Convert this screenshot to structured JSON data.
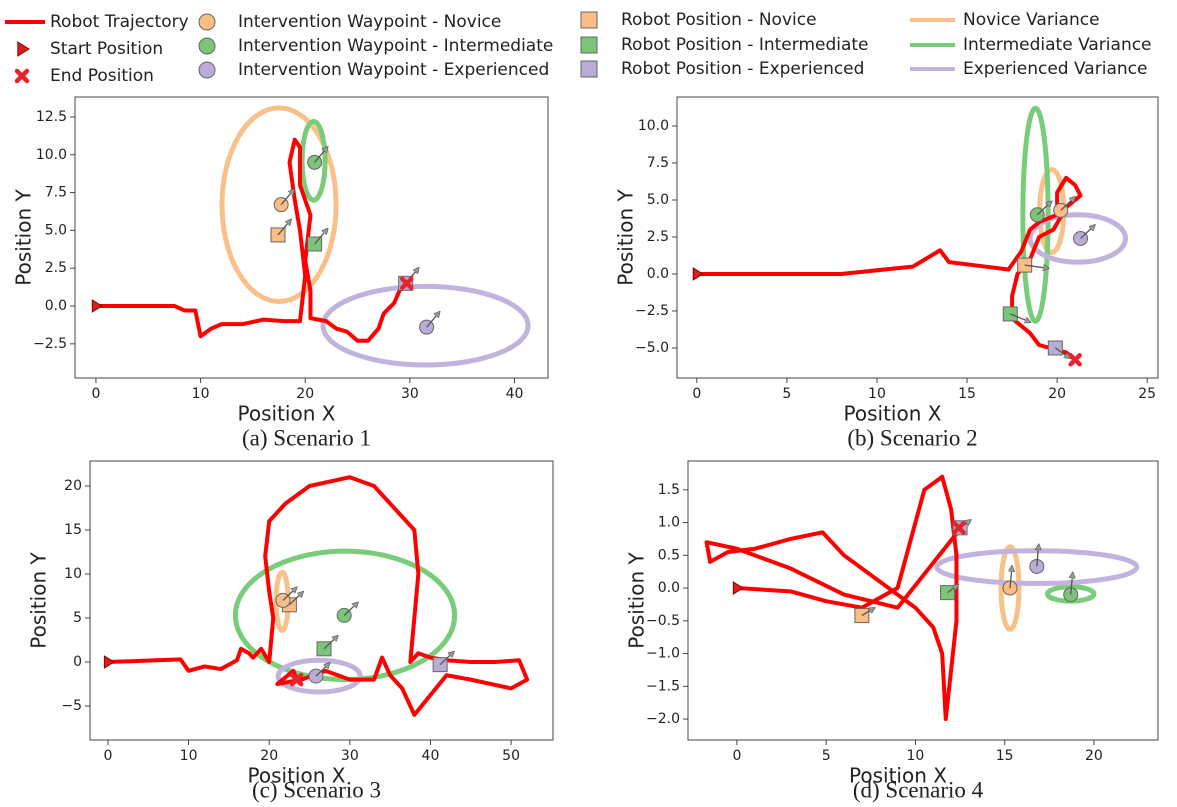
{
  "legend": [
    {
      "name": "Robot Trajectory",
      "color": "#ff0000"
    },
    {
      "name": "Start Position",
      "color": "#d91e1e"
    },
    {
      "name": "End Position",
      "color": "#e8232b"
    },
    {
      "name": "Intervention Waypoint - Novice",
      "color": "#f9bd85"
    },
    {
      "name": "Intervention Waypoint - Intermediate",
      "color": "#7cc47a"
    },
    {
      "name": "Intervention Waypoint - Experienced",
      "color": "#b9acd6"
    },
    {
      "name": "Robot Position - Novice",
      "color": "#f9bd85"
    },
    {
      "name": "Robot Position - Intermediate",
      "color": "#7cc47a"
    },
    {
      "name": "Robot Position - Experienced",
      "color": "#b9acd6"
    },
    {
      "name": "Novice Variance",
      "color": "#f9c08a"
    },
    {
      "name": "Intermediate Variance",
      "color": "#79cc79"
    },
    {
      "name": "Experienced Variance",
      "color": "#c0b3dd"
    }
  ],
  "chart_data": [
    {
      "type": "trajectory",
      "caption": "(a) Scenario 1",
      "xlabel": "Position X",
      "ylabel": "Position Y",
      "xlim": [
        -2.0,
        43.2
      ],
      "ylim": [
        -4.76,
        13.82
      ],
      "xticks": [
        0,
        10,
        20,
        30,
        40
      ],
      "yticks": [
        {
          "value": 12.5,
          "label": "12.5"
        },
        {
          "value": 10,
          "label": "10.0"
        },
        {
          "value": 7.5,
          "label": "7.5"
        },
        {
          "value": 5,
          "label": "5.0"
        },
        {
          "value": 2.5,
          "label": "2.5"
        },
        {
          "value": 0,
          "label": "0.0"
        },
        {
          "value": -2.5,
          "label": "−2.5"
        }
      ],
      "trajectory": {
        "x": [
          0,
          7.5,
          8.5,
          9.5,
          10,
          11,
          12,
          14,
          16,
          18,
          19.5,
          20,
          19.5,
          19,
          18.5,
          19,
          19.5,
          19.5,
          20.5,
          20,
          20.5,
          20.5,
          22,
          23,
          24,
          25,
          26,
          27,
          27.5,
          28.5,
          29,
          29.7
        ],
        "y": [
          0,
          0,
          -0.3,
          -0.3,
          -2,
          -1.5,
          -1.2,
          -1.2,
          -0.9,
          -1,
          -1,
          2,
          5,
          7,
          9.5,
          11,
          10.5,
          8,
          6,
          3,
          1,
          -0.8,
          -1,
          -1.5,
          -1.7,
          -2.3,
          -2.3,
          -1.5,
          -0.5,
          0.2,
          1,
          1.5
        ]
      },
      "start": {
        "x": 0,
        "y": 0
      },
      "end": {
        "x": 29.7,
        "y": 1.5
      },
      "waypoints": [
        {
          "x": 17.7,
          "y": 6.7,
          "arrow": [
            1.1,
            0.9
          ]
        },
        {
          "x": 20.9,
          "y": 9.5,
          "arrow": [
            1.1,
            0.9
          ]
        },
        {
          "x": 31.6,
          "y": -1.4,
          "arrow": [
            1.1,
            0.9
          ]
        }
      ],
      "robot_positions": [
        {
          "x": 17.4,
          "y": 4.7,
          "arrow": [
            1.1,
            0.9
          ]
        },
        {
          "x": 20.9,
          "y": 4.1,
          "arrow": [
            1.1,
            0.9
          ]
        },
        {
          "x": 29.6,
          "y": 1.5,
          "arrow": [
            1.1,
            0.9
          ]
        }
      ],
      "variance": [
        {
          "cx": 17.5,
          "cy": 6.7,
          "rx": 5.45,
          "ry": 6.4
        },
        {
          "cx": 20.8,
          "cy": 9.6,
          "rx": 1.1,
          "ry": 2.6
        },
        {
          "cx": 31.5,
          "cy": -1.3,
          "rx": 9.8,
          "ry": 2.6
        }
      ]
    },
    {
      "type": "trajectory",
      "caption": "(b) Scenario 2",
      "xlabel": "Position X",
      "ylabel": "Position Y",
      "xlim": [
        -1.1,
        25.6
      ],
      "ylim": [
        -7.03,
        11.96
      ],
      "xticks": [
        0,
        5,
        10,
        15,
        20,
        25
      ],
      "yticks": [
        {
          "value": 10,
          "label": "10.0"
        },
        {
          "value": 7.5,
          "label": "7.5"
        },
        {
          "value": 5,
          "label": "5.0"
        },
        {
          "value": 2.5,
          "label": "2.5"
        },
        {
          "value": 0,
          "label": "0.0"
        },
        {
          "value": -2.5,
          "label": "−2.5"
        },
        {
          "value": -5,
          "label": "−5.0"
        }
      ],
      "trajectory": {
        "x": [
          0,
          8,
          12,
          13.5,
          14,
          16,
          17.3,
          18,
          18.5,
          19,
          20,
          20,
          20.5,
          21,
          21.3,
          20.5,
          19.8,
          19,
          18.5,
          17.8,
          17.5,
          17.5,
          18.5,
          19,
          20.5,
          21
        ],
        "y": [
          0,
          0,
          0.5,
          1.6,
          0.8,
          0.5,
          0.3,
          1.5,
          3,
          3.5,
          4,
          5.5,
          6.5,
          6,
          5.3,
          4.5,
          3,
          2.5,
          1,
          0,
          -1.5,
          -3,
          -4,
          -4.8,
          -5.3,
          -5.8
        ]
      },
      "start": {
        "x": 0,
        "y": 0
      },
      "end": {
        "x": 21,
        "y": -5.8
      },
      "waypoints": [
        {
          "x": 20.2,
          "y": 4.3,
          "arrow": [
            0.7,
            0.8
          ]
        },
        {
          "x": 18.9,
          "y": 4.0,
          "arrow": [
            0.7,
            0.8
          ]
        },
        {
          "x": 21.3,
          "y": 2.4,
          "arrow": [
            0.7,
            0.8
          ]
        }
      ],
      "robot_positions": [
        {
          "x": 18.2,
          "y": 0.6,
          "arrow": [
            1.2,
            -0.2
          ]
        },
        {
          "x": 17.4,
          "y": -2.7,
          "arrow": [
            1.0,
            -0.5
          ]
        },
        {
          "x": 19.9,
          "y": -5.0,
          "arrow": [
            0.7,
            -0.6
          ]
        }
      ],
      "variance": [
        {
          "cx": 19.7,
          "cy": 4.25,
          "rx": 0.67,
          "ry": 2.8
        },
        {
          "cx": 18.8,
          "cy": 4.0,
          "rx": 0.7,
          "ry": 7.2
        },
        {
          "cx": 21.15,
          "cy": 2.4,
          "rx": 2.65,
          "ry": 1.6
        }
      ]
    },
    {
      "type": "trajectory",
      "caption": "(c) Scenario 3",
      "xlabel": "Position X",
      "ylabel": "Position Y",
      "xlim": [
        -2.23,
        55.2
      ],
      "ylim": [
        -8.86,
        22.84
      ],
      "xticks": [
        0,
        10,
        20,
        30,
        40,
        50
      ],
      "yticks": [
        20,
        15,
        10,
        5,
        0,
        {
          "value": -5,
          "label": "−5"
        }
      ],
      "trajectory": {
        "x": [
          0,
          9,
          10,
          12,
          14,
          16,
          16.5,
          17.5,
          18,
          19,
          20,
          20.5,
          20,
          19.5,
          20,
          22,
          25,
          30,
          33,
          36,
          38,
          38.5,
          38,
          37.5,
          38.5,
          40,
          42,
          45,
          48,
          51,
          52,
          50,
          45,
          42,
          38,
          36.5,
          35,
          34,
          33,
          30,
          27,
          24,
          21,
          23,
          23.4
        ],
        "y": [
          0,
          0.3,
          -1,
          -0.5,
          -0.8,
          0.2,
          1.5,
          1,
          0.5,
          1.5,
          0,
          5,
          8,
          12,
          16,
          18,
          20,
          21,
          20,
          17,
          15,
          10,
          5,
          0,
          1,
          0.5,
          0.2,
          0,
          0,
          0.2,
          -2,
          -3,
          -2,
          -1.5,
          -6,
          -3,
          -1.5,
          0.5,
          -2,
          -2,
          -1,
          -2,
          -2.5,
          -1,
          -2.0
        ]
      },
      "start": {
        "x": 0,
        "y": 0
      },
      "end": {
        "x": 23.4,
        "y": -2.0
      },
      "waypoints": [
        {
          "x": 21.7,
          "y": 7.0,
          "arrow": [
            1.5,
            1.3
          ]
        },
        {
          "x": 29.3,
          "y": 5.3,
          "arrow": [
            1.5,
            1.3
          ]
        },
        {
          "x": 25.8,
          "y": -1.6,
          "arrow": [
            1.5,
            1.3
          ]
        }
      ],
      "robot_positions": [
        {
          "x": 22.5,
          "y": 6.5,
          "arrow": [
            1.5,
            1.3
          ]
        },
        {
          "x": 26.8,
          "y": 1.5,
          "arrow": [
            1.5,
            1.3
          ]
        },
        {
          "x": 41.2,
          "y": -0.3,
          "arrow": [
            1.5,
            1.3
          ]
        }
      ],
      "variance": [
        {
          "cx": 21.6,
          "cy": 6.9,
          "rx": 0.75,
          "ry": 3.3
        },
        {
          "cx": 29.4,
          "cy": 5.3,
          "rx": 13.6,
          "ry": 7.3
        },
        {
          "cx": 26.2,
          "cy": -1.6,
          "rx": 5.1,
          "ry": 1.8
        }
      ]
    },
    {
      "type": "trajectory",
      "caption": "(d) Scenario 4",
      "xlabel": "Position X",
      "ylabel": "Position Y",
      "xlim": [
        -2.74,
        23.59
      ],
      "ylim": [
        -2.32,
        1.94
      ],
      "xticks": [
        0,
        5,
        10,
        15,
        20
      ],
      "yticks": [
        {
          "value": 1.5,
          "label": "1.5"
        },
        {
          "value": 1,
          "label": "1.0"
        },
        {
          "value": 0.5,
          "label": "0.5"
        },
        {
          "value": 0,
          "label": "0.0"
        },
        {
          "value": -0.5,
          "label": "−0.5"
        },
        {
          "value": -1,
          "label": "−1.0"
        },
        {
          "value": -1.5,
          "label": "−1.5"
        },
        {
          "value": -2,
          "label": "−2.0"
        }
      ],
      "trajectory": {
        "x": [
          0,
          3,
          5,
          7,
          9,
          10,
          10.5,
          11.5,
          12,
          12.3,
          12.3,
          11.7,
          11.5,
          11,
          10,
          8,
          6,
          4.8,
          3,
          1,
          -0.5,
          -1.5,
          -1.7,
          0,
          3,
          6,
          9,
          12.5
        ],
        "y": [
          0,
          -0.05,
          -0.2,
          -0.3,
          0,
          1,
          1.5,
          1.7,
          1.2,
          0.5,
          -0.5,
          -2,
          -1,
          -0.6,
          -0.3,
          0.1,
          0.5,
          0.85,
          0.75,
          0.6,
          0.55,
          0.4,
          0.7,
          0.6,
          0.3,
          -0.1,
          -0.3,
          0.9
        ]
      },
      "start": {
        "x": 0,
        "y": 0
      },
      "end": {
        "x": 12.44,
        "y": 0.92
      },
      "waypoints": [
        {
          "x": 15.3,
          "y": 0,
          "arrow": [
            0.1,
            0.3
          ]
        },
        {
          "x": 18.7,
          "y": -0.1,
          "arrow": [
            0.1,
            0.3
          ]
        },
        {
          "x": 16.8,
          "y": 0.33,
          "arrow": [
            0.1,
            0.3
          ]
        }
      ],
      "robot_positions": [
        {
          "x": 7.0,
          "y": -0.42,
          "arrow": [
            0.6,
            0.1
          ]
        },
        {
          "x": 11.8,
          "y": -0.07,
          "arrow": [
            0.5,
            0.1
          ]
        },
        {
          "x": 12.5,
          "y": 0.92,
          "arrow": [
            0.5,
            0.1
          ]
        }
      ],
      "variance": [
        {
          "cx": 15.3,
          "cy": 0,
          "rx": 0.5,
          "ry": 0.63
        },
        {
          "cx": 18.7,
          "cy": -0.09,
          "rx": 1.3,
          "ry": 0.11
        },
        {
          "cx": 16.8,
          "cy": 0.32,
          "rx": 5.6,
          "ry": 0.25
        }
      ]
    }
  ]
}
